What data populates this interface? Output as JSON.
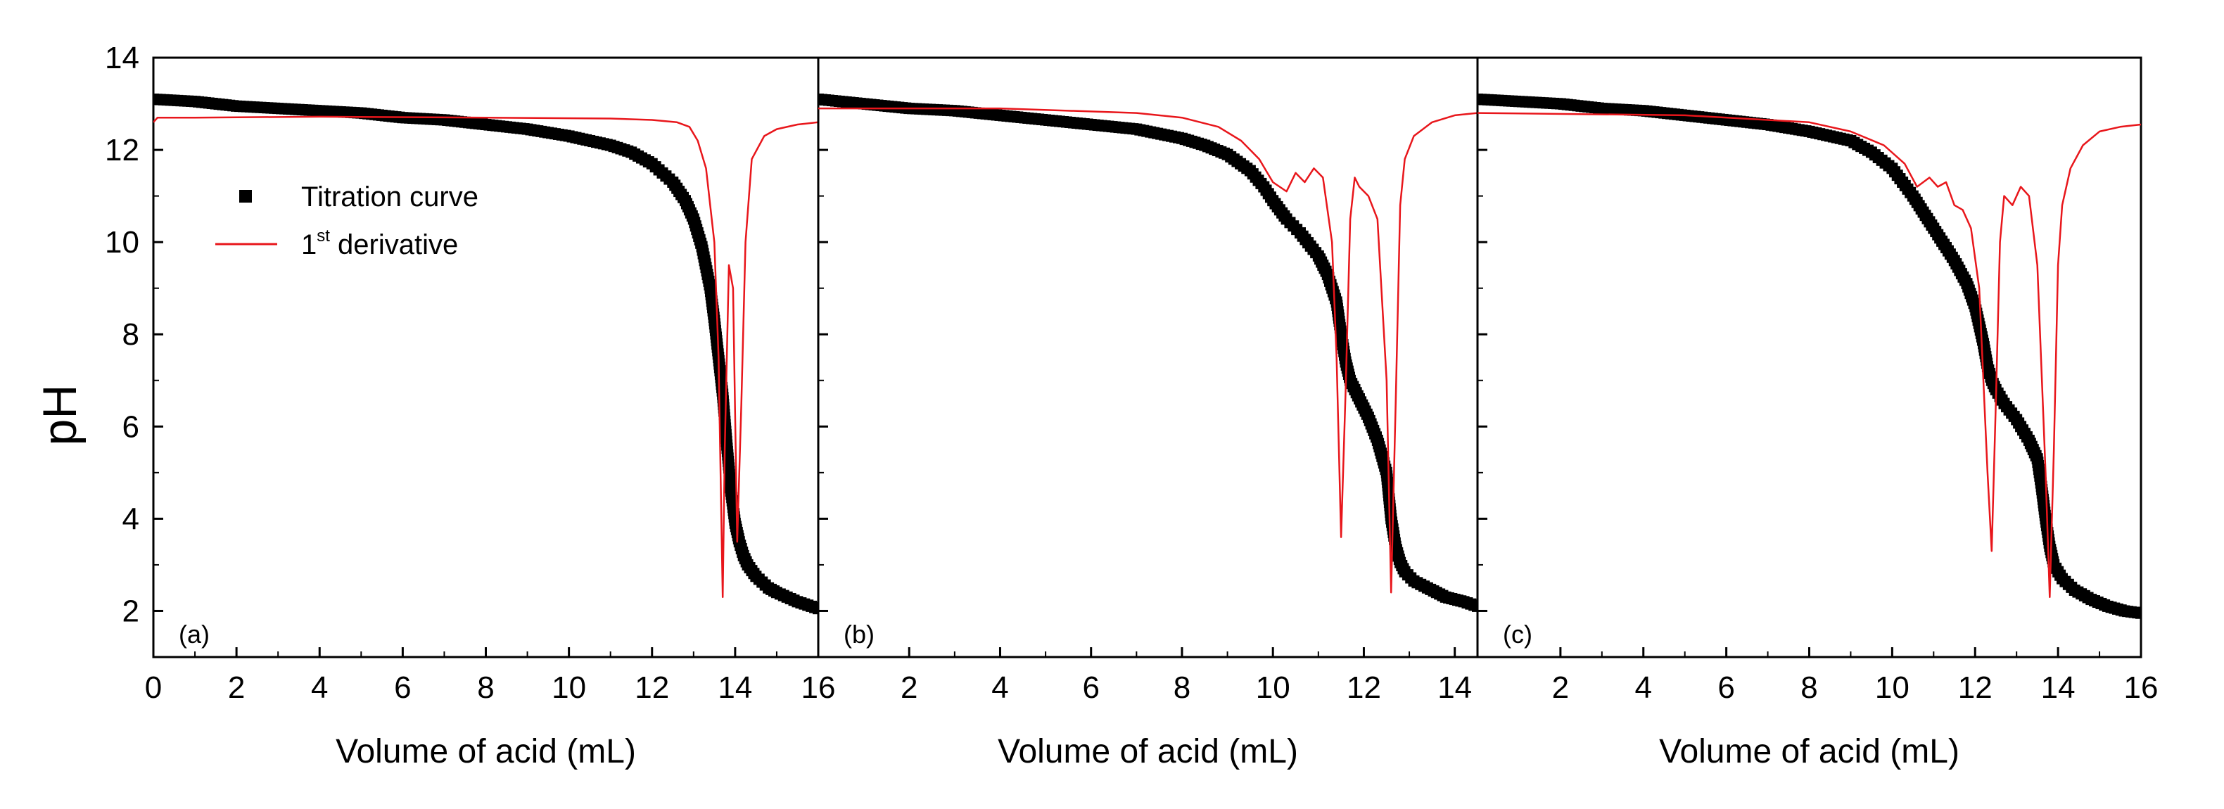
{
  "chart_data": {
    "type": "line",
    "ylabel": "pH",
    "ylim": [
      1,
      14
    ],
    "yticks": [
      2,
      4,
      6,
      8,
      10,
      12,
      14
    ],
    "legend": {
      "position": "upper-left of panel (a)",
      "entries": [
        {
          "label": "Titration curve",
          "marker": "square",
          "color": "#000000"
        },
        {
          "label": "1",
          "sup": "st",
          "label_rest": " derivative",
          "style": "line",
          "color": "#e8161b"
        }
      ]
    },
    "colors": {
      "titration": "#000000",
      "derivative": "#e8161b",
      "frame": "#000000"
    },
    "panels": [
      {
        "label": "(a)",
        "xlabel": "Volume of acid (mL)",
        "xlim": [
          0,
          16
        ],
        "xticks": [
          0,
          2,
          4,
          6,
          8,
          10,
          12,
          14,
          16
        ],
        "series": [
          {
            "name": "Titration curve",
            "x": [
              0,
              1,
              2,
              3,
              4,
              5,
              6,
              7,
              8,
              9,
              10,
              11,
              11.5,
              12,
              12.5,
              12.8,
              13,
              13.2,
              13.4,
              13.5,
              13.6,
              13.7,
              13.8,
              13.9,
              14.0,
              14.1,
              14.2,
              14.3,
              14.5,
              14.8,
              15,
              15.5,
              16
            ],
            "y": [
              13.1,
              13.05,
              12.95,
              12.9,
              12.85,
              12.8,
              12.7,
              12.65,
              12.55,
              12.45,
              12.3,
              12.1,
              11.95,
              11.7,
              11.3,
              10.9,
              10.5,
              9.9,
              9.0,
              8.3,
              7.5,
              6.7,
              5.6,
              4.6,
              3.9,
              3.5,
              3.2,
              3.0,
              2.75,
              2.5,
              2.4,
              2.2,
              2.05
            ]
          },
          {
            "name": "1st derivative",
            "x": [
              0,
              0.1,
              1,
              4,
              8,
              11,
              12,
              12.6,
              12.9,
              13.1,
              13.3,
              13.5,
              13.6,
              13.7,
              13.75,
              13.85,
              13.95,
              14.05,
              14.15,
              14.25,
              14.4,
              14.7,
              15,
              15.5,
              16
            ],
            "y": [
              12.6,
              12.7,
              12.7,
              12.72,
              12.7,
              12.68,
              12.65,
              12.6,
              12.5,
              12.2,
              11.6,
              10.0,
              7.5,
              2.3,
              5.5,
              9.5,
              9.0,
              3.5,
              6.5,
              10.0,
              11.8,
              12.3,
              12.45,
              12.55,
              12.6
            ]
          }
        ]
      },
      {
        "label": "(b)",
        "xlabel": "Volume of acid (mL)",
        "xlim": [
          0,
          14.5
        ],
        "xticks": [
          2,
          4,
          6,
          8,
          10,
          12,
          14
        ],
        "series": [
          {
            "name": "Titration curve",
            "x": [
              0,
              1,
              2,
              3,
              4,
              5,
              6,
              7,
              8,
              8.5,
              9,
              9.5,
              9.8,
              10,
              10.3,
              10.6,
              11,
              11.2,
              11.4,
              11.5,
              11.6,
              11.7,
              11.9,
              12.1,
              12.3,
              12.5,
              12.6,
              12.7,
              12.8,
              12.9,
              13.1,
              13.4,
              13.8,
              14.2,
              14.5
            ],
            "y": [
              13.1,
              13.0,
              12.9,
              12.85,
              12.75,
              12.65,
              12.55,
              12.45,
              12.25,
              12.1,
              11.9,
              11.55,
              11.2,
              10.9,
              10.5,
              10.2,
              9.7,
              9.3,
              8.7,
              8.0,
              7.4,
              7.0,
              6.6,
              6.2,
              5.7,
              5.0,
              4.0,
              3.4,
              3.05,
              2.85,
              2.65,
              2.5,
              2.3,
              2.2,
              2.1
            ]
          },
          {
            "name": "1st derivative",
            "x": [
              0,
              4,
              7,
              8,
              8.8,
              9.3,
              9.7,
              10.0,
              10.3,
              10.5,
              10.7,
              10.9,
              11.1,
              11.3,
              11.4,
              11.5,
              11.6,
              11.7,
              11.8,
              11.9,
              12.1,
              12.3,
              12.5,
              12.6,
              12.7,
              12.8,
              12.9,
              13.1,
              13.5,
              14,
              14.5
            ],
            "y": [
              12.9,
              12.9,
              12.8,
              12.7,
              12.5,
              12.2,
              11.8,
              11.3,
              11.1,
              11.5,
              11.3,
              11.6,
              11.4,
              10.0,
              7.5,
              3.6,
              6.8,
              10.5,
              11.4,
              11.2,
              11.0,
              10.5,
              7.0,
              2.4,
              6.5,
              10.8,
              11.8,
              12.3,
              12.6,
              12.75,
              12.8
            ]
          }
        ]
      },
      {
        "label": "(c)",
        "xlabel": "Volume of acid (mL)",
        "xlim": [
          0,
          16
        ],
        "xticks": [
          2,
          4,
          6,
          8,
          10,
          12,
          14,
          16
        ],
        "series": [
          {
            "name": "Titration curve",
            "x": [
              0,
              1,
              2,
              3,
              4,
              5,
              6,
              7,
              8,
              9,
              9.5,
              10,
              10.5,
              11,
              11.5,
              11.8,
              12.0,
              12.2,
              12.3,
              12.4,
              12.5,
              12.7,
              13.0,
              13.3,
              13.5,
              13.6,
              13.7,
              13.8,
              13.9,
              14.1,
              14.4,
              14.8,
              15.2,
              15.6,
              16
            ],
            "y": [
              13.1,
              13.05,
              13.0,
              12.9,
              12.85,
              12.75,
              12.65,
              12.55,
              12.4,
              12.2,
              11.95,
              11.6,
              11.0,
              10.3,
              9.6,
              9.1,
              8.6,
              7.8,
              7.3,
              7.0,
              6.8,
              6.5,
              6.15,
              5.7,
              5.3,
              4.7,
              4.0,
              3.4,
              3.0,
              2.7,
              2.45,
              2.25,
              2.1,
              2.0,
              1.95
            ]
          },
          {
            "name": "1st derivative",
            "x": [
              0,
              5,
              8,
              9,
              9.8,
              10.3,
              10.6,
              10.9,
              11.1,
              11.3,
              11.5,
              11.7,
              11.9,
              12.1,
              12.2,
              12.3,
              12.4,
              12.5,
              12.6,
              12.7,
              12.9,
              13.1,
              13.3,
              13.5,
              13.7,
              13.8,
              13.9,
              14.0,
              14.1,
              14.3,
              14.6,
              15,
              15.5,
              16
            ],
            "y": [
              12.8,
              12.75,
              12.6,
              12.4,
              12.1,
              11.7,
              11.2,
              11.4,
              11.2,
              11.3,
              10.8,
              10.7,
              10.3,
              9.0,
              7.0,
              5.0,
              3.3,
              6.5,
              10.0,
              11.0,
              10.8,
              11.2,
              11.0,
              9.5,
              5.0,
              2.3,
              5.5,
              9.5,
              10.8,
              11.6,
              12.1,
              12.4,
              12.5,
              12.55
            ]
          }
        ]
      }
    ]
  }
}
